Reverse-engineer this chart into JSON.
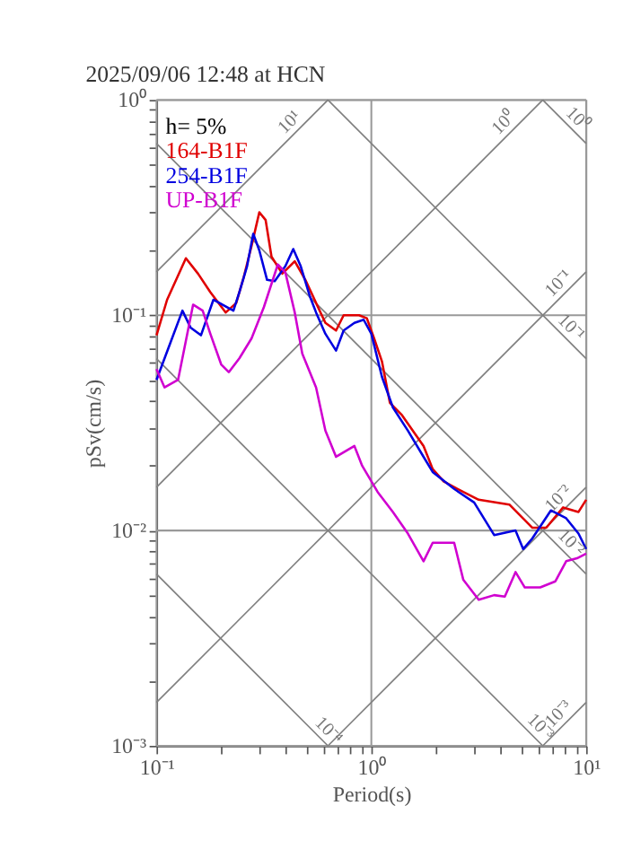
{
  "chart_data": {
    "type": "line",
    "title": "2025/09/06 12:48 at HCN",
    "xlabel": "Period(s)",
    "ylabel": "pSv(cm/s)",
    "log": "xy",
    "grid": true,
    "legend": "top left",
    "line_style": "solid",
    "marker": "none",
    "xlim": [
      0.1,
      10
    ],
    "ylim": [
      0.001,
      1
    ],
    "xticks": [
      {
        "value": 0.1,
        "label": "10⁻¹"
      },
      {
        "value": 0.2,
        "label": null
      },
      {
        "value": 0.3,
        "label": null
      },
      {
        "value": 0.4,
        "label": null
      },
      {
        "value": 0.5,
        "label": null
      },
      {
        "value": 0.6,
        "label": null
      },
      {
        "value": 0.7,
        "label": null
      },
      {
        "value": 0.8,
        "label": null
      },
      {
        "value": 0.9,
        "label": null
      },
      {
        "value": 1,
        "label": "10⁰"
      },
      {
        "value": 2,
        "label": null
      },
      {
        "value": 3,
        "label": null
      },
      {
        "value": 4,
        "label": null
      },
      {
        "value": 5,
        "label": null
      },
      {
        "value": 6,
        "label": null
      },
      {
        "value": 7,
        "label": null
      },
      {
        "value": 8,
        "label": null
      },
      {
        "value": 9,
        "label": null
      },
      {
        "value": 10,
        "label": "10¹"
      }
    ],
    "yticks": [
      {
        "value": 0.001,
        "label": "10⁻³"
      },
      {
        "value": 0.002,
        "label": null
      },
      {
        "value": 0.003,
        "label": null
      },
      {
        "value": 0.004,
        "label": null
      },
      {
        "value": 0.005,
        "label": null
      },
      {
        "value": 0.006,
        "label": null
      },
      {
        "value": 0.007,
        "label": null
      },
      {
        "value": 0.008,
        "label": null
      },
      {
        "value": 0.009,
        "label": null
      },
      {
        "value": 0.01,
        "label": "10⁻²"
      },
      {
        "value": 0.02,
        "label": null
      },
      {
        "value": 0.03,
        "label": null
      },
      {
        "value": 0.04,
        "label": null
      },
      {
        "value": 0.05,
        "label": null
      },
      {
        "value": 0.06,
        "label": null
      },
      {
        "value": 0.07,
        "label": null
      },
      {
        "value": 0.08,
        "label": null
      },
      {
        "value": 0.09,
        "label": null
      },
      {
        "value": 0.1,
        "label": "10⁻¹"
      },
      {
        "value": 0.2,
        "label": null
      },
      {
        "value": 0.3,
        "label": null
      },
      {
        "value": 0.4,
        "label": null
      },
      {
        "value": 0.5,
        "label": null
      },
      {
        "value": 0.6,
        "label": null
      },
      {
        "value": 0.7,
        "label": null
      },
      {
        "value": 0.8,
        "label": null
      },
      {
        "value": 0.9,
        "label": null
      },
      {
        "value": 1,
        "label": "10⁰"
      }
    ],
    "annotations": [
      "h= 5%",
      {
        "text": "10¹",
        "x": 0.454,
        "y": 0.723
      },
      {
        "text": "10⁰",
        "x": 4.52,
        "y": 0.72
      },
      {
        "text": "10⁰",
        "x": 8.4,
        "y": 0.748
      },
      {
        "text": "10⁻¹",
        "x": 8.1,
        "y": 0.129
      },
      {
        "text": "10⁻¹",
        "x": 7.8,
        "y": 0.0805
      },
      {
        "text": "10⁻²",
        "x": 8.1,
        "y": 0.0129
      },
      {
        "text": "10⁻²",
        "x": 7.8,
        "y": 0.00805
      },
      {
        "text": "10⁻⁴",
        "x": 0.58,
        "y": 0.00108
      },
      {
        "text": "10⁻³",
        "x": 5.62,
        "y": 0.00112
      },
      {
        "text": "10⁻³",
        "x": 8.1,
        "y": 0.00129
      }
    ],
    "series": [
      {
        "color": "#808080",
        "x": [
          0.1,
          0.628
        ],
        "values": [
          0.159,
          1
        ]
      },
      {
        "color": "#808080",
        "x": [
          0.1,
          6.28
        ],
        "values": [
          0.0159,
          1
        ]
      },
      {
        "color": "#808080",
        "x": [
          0.1,
          10
        ],
        "values": [
          0.00159,
          0.159
        ]
      },
      {
        "color": "#808080",
        "x": [
          0.628,
          10
        ],
        "values": [
          0.001,
          0.0159
        ]
      },
      {
        "color": "#808080",
        "x": [
          6.28,
          10
        ],
        "values": [
          0.001,
          0.00159
        ]
      },
      {
        "color": "#808080",
        "x": [
          0.1,
          10
        ],
        "values": [
          0.628,
          0.00628
        ]
      },
      {
        "color": "#808080",
        "x": [
          0.628,
          10
        ],
        "values": [
          1,
          0.0628
        ]
      },
      {
        "color": "#808080",
        "x": [
          6.28,
          10
        ],
        "values": [
          1,
          0.628
        ]
      },
      {
        "color": "#808080",
        "x": [
          0.1,
          6.28
        ],
        "values": [
          0.0628,
          0.001
        ]
      },
      {
        "color": "#808080",
        "x": [
          0.1,
          0.628
        ],
        "values": [
          0.00628,
          0.001
        ]
      },
      {
        "name": "164-B1F",
        "color": "#e00000",
        "x": [
          0.1,
          0.112,
          0.137,
          0.156,
          0.178,
          0.21,
          0.235,
          0.255,
          0.277,
          0.301,
          0.322,
          0.343,
          0.385,
          0.44,
          0.493,
          0.553,
          0.611,
          0.685,
          0.743,
          0.877,
          0.953,
          1.03,
          1.12,
          1.22,
          1.39,
          1.75,
          1.93,
          2.17,
          2.68,
          3.16,
          4.39,
          5.62,
          6.52,
          7.81,
          9.21,
          10
        ],
        "values": [
          0.0807,
          0.118,
          0.184,
          0.156,
          0.128,
          0.103,
          0.114,
          0.151,
          0.21,
          0.301,
          0.277,
          0.187,
          0.156,
          0.178,
          0.146,
          0.114,
          0.0921,
          0.0849,
          0.1,
          0.1,
          0.0968,
          0.0781,
          0.0611,
          0.0392,
          0.0343,
          0.0247,
          0.0193,
          0.0169,
          0.0151,
          0.0139,
          0.0132,
          0.0103,
          0.0103,
          0.0128,
          0.0122,
          0.0139
        ]
      },
      {
        "name": "254-B1F",
        "color": "#0000e0",
        "x": [
          0.1,
          0.116,
          0.132,
          0.144,
          0.161,
          0.184,
          0.228,
          0.243,
          0.264,
          0.282,
          0.301,
          0.327,
          0.355,
          0.398,
          0.433,
          0.469,
          0.518,
          0.553,
          0.611,
          0.685,
          0.743,
          0.834,
          0.921,
          1.0,
          1.12,
          1.26,
          1.48,
          1.75,
          1.93,
          2.43,
          3.01,
          3.73,
          4.69,
          5.09,
          5.62,
          6.85,
          8.07,
          9.21,
          10
        ],
        "values": [
          0.0501,
          0.0744,
          0.105,
          0.0877,
          0.0807,
          0.118,
          0.105,
          0.128,
          0.169,
          0.239,
          0.2,
          0.146,
          0.144,
          0.169,
          0.203,
          0.169,
          0.122,
          0.103,
          0.082,
          0.0685,
          0.0849,
          0.0921,
          0.0953,
          0.082,
          0.0518,
          0.0373,
          0.0291,
          0.022,
          0.0187,
          0.0156,
          0.0135,
          0.00953,
          0.01,
          0.0082,
          0.0092,
          0.0124,
          0.0114,
          0.00968,
          0.0082
        ]
      },
      {
        "name": "UP-B1F",
        "color": "#d000d0",
        "x": [
          0.1,
          0.109,
          0.126,
          0.148,
          0.164,
          0.178,
          0.2,
          0.217,
          0.243,
          0.277,
          0.316,
          0.367,
          0.398,
          0.44,
          0.477,
          0.553,
          0.611,
          0.685,
          0.834,
          0.906,
          1.07,
          1.26,
          1.48,
          1.75,
          1.93,
          2.43,
          2.68,
          3.16,
          3.73,
          4.18,
          4.69,
          5.18,
          6.11,
          7.19,
          8.07,
          9.06,
          10
        ],
        "values": [
          0.0562,
          0.0462,
          0.0501,
          0.112,
          0.105,
          0.082,
          0.0591,
          0.0544,
          0.0631,
          0.0781,
          0.109,
          0.172,
          0.158,
          0.103,
          0.0663,
          0.0462,
          0.0291,
          0.022,
          0.0247,
          0.02,
          0.0151,
          0.0122,
          0.00968,
          0.0072,
          0.00877,
          0.00877,
          0.0059,
          0.00477,
          0.00501,
          0.00493,
          0.00641,
          0.00544,
          0.00544,
          0.00581,
          0.0072,
          0.00743,
          0.00781
        ]
      }
    ]
  }
}
